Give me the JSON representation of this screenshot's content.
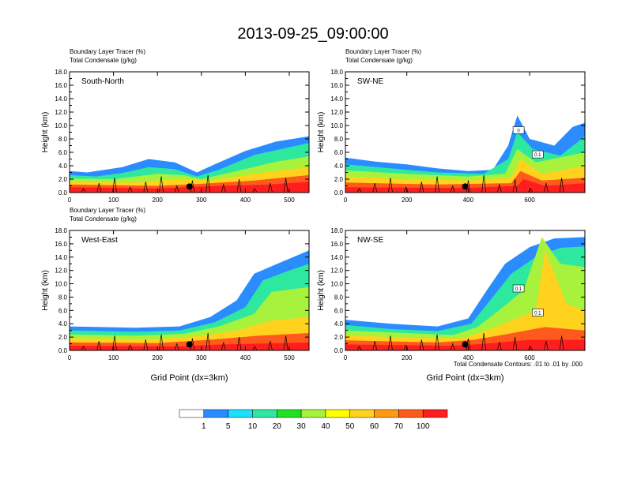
{
  "title": "2013-09-25_09:00:00",
  "colors": {
    "scale": [
      "#ffffff",
      "#2a8cff",
      "#19e0ff",
      "#2ee8a0",
      "#22e022",
      "#a6f23c",
      "#ffff00",
      "#ffd21e",
      "#ff9a14",
      "#ff5a1e",
      "#ff1e1e"
    ],
    "contour": "#000000"
  },
  "colorbar": {
    "labels": [
      "1",
      "5",
      "10",
      "20",
      "30",
      "40",
      "50",
      "60",
      "70",
      "100"
    ]
  },
  "footnote": "Total Condensate Contours: .01 to .01 by .000",
  "chart_data": [
    {
      "type": "heatmap",
      "id": "south-north",
      "label": "South-North",
      "field1": "Boundary Layer Tracer",
      "field1_unit": "(%)",
      "field2": "Total Condensate",
      "field2_unit": "(g/kg)",
      "xlabel": "",
      "ylabel": "Height (km)",
      "xlim": [
        0,
        545
      ],
      "ylim": [
        0,
        18
      ],
      "xticks": [
        "0",
        "100",
        "200",
        "300",
        "400",
        "500"
      ],
      "xtick_values": [
        0,
        100,
        200,
        300,
        400,
        500
      ],
      "yticks": [
        "0.0",
        "2.0",
        "4.0",
        "6.0",
        "8.0",
        "10.0",
        "12.0",
        "14.0",
        "16.0",
        "18.0"
      ],
      "ytick_values": [
        0,
        2,
        4,
        6,
        8,
        10,
        12,
        14,
        16,
        18
      ],
      "marker_x": 273,
      "layers": [
        {
          "level": 1,
          "top": [
            [
              0,
              3.2
            ],
            [
              40,
              3.0
            ],
            [
              80,
              3.4
            ],
            [
              120,
              3.8
            ],
            [
              180,
              5.0
            ],
            [
              240,
              4.5
            ],
            [
              290,
              3.0
            ],
            [
              330,
              4.2
            ],
            [
              400,
              6.2
            ],
            [
              470,
              7.6
            ],
            [
              545,
              8.4
            ]
          ]
        },
        {
          "level": 3,
          "top": [
            [
              0,
              2.6
            ],
            [
              60,
              2.4
            ],
            [
              120,
              2.9
            ],
            [
              180,
              3.8
            ],
            [
              240,
              3.5
            ],
            [
              290,
              2.4
            ],
            [
              340,
              3.4
            ],
            [
              420,
              5.6
            ],
            [
              545,
              7.4
            ]
          ]
        },
        {
          "level": 5,
          "top": [
            [
              0,
              2.1
            ],
            [
              100,
              2.0
            ],
            [
              200,
              2.8
            ],
            [
              260,
              2.6
            ],
            [
              300,
              2.0
            ],
            [
              380,
              3.2
            ],
            [
              470,
              4.6
            ],
            [
              545,
              5.4
            ]
          ]
        },
        {
          "level": 7,
          "top": [
            [
              0,
              1.6
            ],
            [
              150,
              1.5
            ],
            [
              250,
              2.0
            ],
            [
              320,
              1.8
            ],
            [
              420,
              2.8
            ],
            [
              545,
              3.8
            ]
          ]
        },
        {
          "level": 9,
          "top": [
            [
              0,
              1.2
            ],
            [
              200,
              1.0
            ],
            [
              300,
              1.3
            ],
            [
              420,
              1.8
            ],
            [
              545,
              2.6
            ]
          ]
        },
        {
          "level": 10,
          "top": [
            [
              0,
              0.8
            ],
            [
              200,
              0.6
            ],
            [
              300,
              0.9
            ],
            [
              450,
              1.2
            ],
            [
              545,
              1.6
            ]
          ]
        }
      ]
    },
    {
      "type": "heatmap",
      "id": "sw-ne",
      "label": "SW-NE",
      "field1": "Boundary Layer Tracer",
      "field1_unit": "(%)",
      "field2": "Total Condensate",
      "field2_unit": "(g/kg)",
      "xlabel": "",
      "ylabel": "Height (km)",
      "xlim": [
        0,
        780
      ],
      "ylim": [
        0,
        18
      ],
      "xticks": [
        "0",
        "200",
        "400",
        "600"
      ],
      "xtick_values": [
        0,
        200,
        400,
        600
      ],
      "yticks": [
        "0.0",
        "2.0",
        "4.0",
        "6.0",
        "8.0",
        "10.0",
        "12.0",
        "14.0",
        "16.0",
        "18.0"
      ],
      "ytick_values": [
        0,
        2,
        4,
        6,
        8,
        10,
        12,
        14,
        16,
        18
      ],
      "marker_x": 390,
      "contour_labels": [
        "0",
        "0.1"
      ],
      "layers": [
        {
          "level": 1,
          "top": [
            [
              0,
              5.2
            ],
            [
              100,
              4.6
            ],
            [
              200,
              4.2
            ],
            [
              300,
              3.6
            ],
            [
              400,
              3.2
            ],
            [
              480,
              3.4
            ],
            [
              530,
              7.0
            ],
            [
              560,
              11.5
            ],
            [
              600,
              8.0
            ],
            [
              680,
              7.0
            ],
            [
              740,
              9.8
            ],
            [
              780,
              10.4
            ]
          ]
        },
        {
          "level": 3,
          "top": [
            [
              0,
              4.2
            ],
            [
              150,
              3.6
            ],
            [
              300,
              3.0
            ],
            [
              450,
              2.8
            ],
            [
              530,
              5.0
            ],
            [
              560,
              9.0
            ],
            [
              610,
              6.5
            ],
            [
              700,
              5.5
            ],
            [
              780,
              8.4
            ]
          ]
        },
        {
          "level": 5,
          "top": [
            [
              0,
              3.3
            ],
            [
              200,
              2.8
            ],
            [
              400,
              2.4
            ],
            [
              520,
              2.8
            ],
            [
              560,
              6.5
            ],
            [
              620,
              4.5
            ],
            [
              780,
              6.0
            ]
          ]
        },
        {
          "level": 7,
          "top": [
            [
              0,
              2.4
            ],
            [
              200,
              2.0
            ],
            [
              400,
              1.8
            ],
            [
              540,
              2.2
            ],
            [
              570,
              5.0
            ],
            [
              640,
              2.8
            ],
            [
              780,
              4.0
            ]
          ]
        },
        {
          "level": 9,
          "top": [
            [
              0,
              1.5
            ],
            [
              300,
              1.2
            ],
            [
              540,
              1.4
            ],
            [
              570,
              3.2
            ],
            [
              640,
              1.8
            ],
            [
              780,
              2.2
            ]
          ]
        },
        {
          "level": 10,
          "top": [
            [
              0,
              0.8
            ],
            [
              400,
              0.7
            ],
            [
              560,
              1.0
            ],
            [
              580,
              2.0
            ],
            [
              650,
              1.0
            ],
            [
              780,
              1.4
            ]
          ]
        }
      ]
    },
    {
      "type": "heatmap",
      "id": "west-east",
      "label": "West-East",
      "field1": "Boundary Layer Tracer",
      "field1_unit": "(%)",
      "field2": "Total Condensate",
      "field2_unit": "(g/kg)",
      "xlabel": "Grid Point (dx=3km)",
      "ylabel": "Height (km)",
      "xlim": [
        0,
        545
      ],
      "ylim": [
        0,
        18
      ],
      "xticks": [
        "0",
        "100",
        "200",
        "300",
        "400",
        "500"
      ],
      "xtick_values": [
        0,
        100,
        200,
        300,
        400,
        500
      ],
      "yticks": [
        "0.0",
        "2.0",
        "4.0",
        "6.0",
        "8.0",
        "10.0",
        "12.0",
        "14.0",
        "16.0",
        "18.0"
      ],
      "ytick_values": [
        0,
        2,
        4,
        6,
        8,
        10,
        12,
        14,
        16,
        18
      ],
      "marker_x": 273,
      "layers": [
        {
          "level": 1,
          "top": [
            [
              0,
              3.6
            ],
            [
              150,
              3.4
            ],
            [
              250,
              3.6
            ],
            [
              320,
              5.0
            ],
            [
              380,
              7.5
            ],
            [
              420,
              11.5
            ],
            [
              480,
              13.2
            ],
            [
              545,
              15.0
            ]
          ]
        },
        {
          "level": 3,
          "top": [
            [
              0,
              3.0
            ],
            [
              150,
              2.8
            ],
            [
              250,
              3.0
            ],
            [
              330,
              4.2
            ],
            [
              400,
              6.5
            ],
            [
              440,
              10.5
            ],
            [
              500,
              12.0
            ],
            [
              545,
              13.0
            ]
          ]
        },
        {
          "level": 5,
          "top": [
            [
              0,
              2.4
            ],
            [
              150,
              2.2
            ],
            [
              260,
              2.5
            ],
            [
              340,
              3.6
            ],
            [
              420,
              5.5
            ],
            [
              460,
              8.8
            ],
            [
              545,
              9.5
            ]
          ]
        },
        {
          "level": 7,
          "top": [
            [
              0,
              1.8
            ],
            [
              200,
              1.7
            ],
            [
              300,
              2.2
            ],
            [
              380,
              3.0
            ],
            [
              460,
              4.5
            ],
            [
              545,
              5.0
            ]
          ]
        },
        {
          "level": 9,
          "top": [
            [
              0,
              1.2
            ],
            [
              200,
              1.1
            ],
            [
              320,
              1.6
            ],
            [
              430,
              2.2
            ],
            [
              545,
              2.6
            ]
          ]
        },
        {
          "level": 10,
          "top": [
            [
              0,
              0.7
            ],
            [
              250,
              0.6
            ],
            [
              350,
              0.9
            ],
            [
              545,
              1.2
            ]
          ]
        }
      ]
    },
    {
      "type": "heatmap",
      "id": "nw-se",
      "label": "NW-SE",
      "field1": "",
      "field1_unit": "",
      "field2": "",
      "field2_unit": "",
      "xlabel": "Grid Point (dx=3km)",
      "ylabel": "Height (km)",
      "xlim": [
        0,
        780
      ],
      "ylim": [
        0,
        18
      ],
      "xticks": [
        "0",
        "200",
        "400",
        "600"
      ],
      "xtick_values": [
        0,
        200,
        400,
        600
      ],
      "yticks": [
        "0.0",
        "2.0",
        "4.0",
        "6.0",
        "8.0",
        "10.0",
        "12.0",
        "14.0",
        "16.0",
        "18.0"
      ],
      "ytick_values": [
        0,
        2,
        4,
        6,
        8,
        10,
        12,
        14,
        16,
        18
      ],
      "marker_x": 390,
      "contour_labels": [
        "0.1",
        "0.1"
      ],
      "layers": [
        {
          "level": 1,
          "top": [
            [
              0,
              4.6
            ],
            [
              150,
              4.0
            ],
            [
              300,
              3.6
            ],
            [
              400,
              4.8
            ],
            [
              460,
              9.0
            ],
            [
              520,
              13.0
            ],
            [
              600,
              15.5
            ],
            [
              680,
              16.8
            ],
            [
              780,
              17.0
            ]
          ]
        },
        {
          "level": 3,
          "top": [
            [
              0,
              3.8
            ],
            [
              150,
              3.2
            ],
            [
              300,
              2.9
            ],
            [
              410,
              4.0
            ],
            [
              480,
              8.0
            ],
            [
              540,
              11.5
            ],
            [
              620,
              14.0
            ],
            [
              700,
              15.4
            ],
            [
              780,
              15.6
            ]
          ]
        },
        {
          "level": 5,
          "top": [
            [
              0,
              3.0
            ],
            [
              200,
              2.6
            ],
            [
              350,
              2.3
            ],
            [
              430,
              3.5
            ],
            [
              500,
              6.0
            ],
            [
              580,
              9.0
            ],
            [
              640,
              17.0
            ],
            [
              700,
              13.0
            ],
            [
              780,
              12.5
            ]
          ]
        },
        {
          "level": 7,
          "top": [
            [
              0,
              2.3
            ],
            [
              200,
              1.9
            ],
            [
              380,
              1.8
            ],
            [
              450,
              2.8
            ],
            [
              540,
              4.5
            ],
            [
              620,
              6.0
            ],
            [
              650,
              15.0
            ],
            [
              720,
              7.0
            ],
            [
              780,
              6.0
            ]
          ]
        },
        {
          "level": 9,
          "top": [
            [
              0,
              1.5
            ],
            [
              300,
              1.2
            ],
            [
              420,
              1.6
            ],
            [
              520,
              2.4
            ],
            [
              650,
              3.5
            ],
            [
              780,
              3.0
            ]
          ]
        },
        {
          "level": 10,
          "top": [
            [
              0,
              0.9
            ],
            [
              350,
              0.7
            ],
            [
              450,
              1.0
            ],
            [
              600,
              1.6
            ],
            [
              780,
              1.6
            ]
          ]
        }
      ]
    }
  ]
}
